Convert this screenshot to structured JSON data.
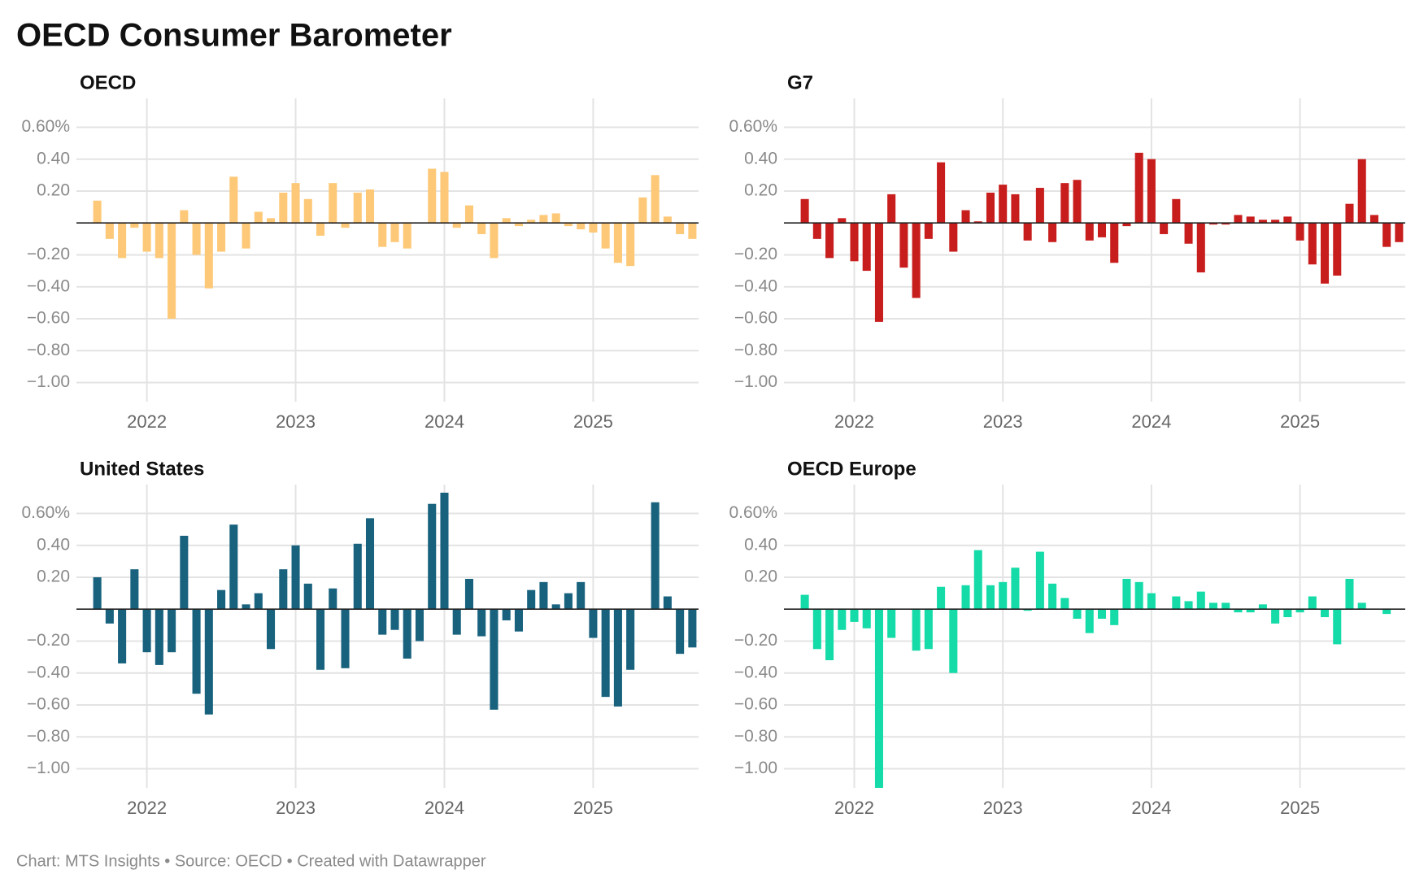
{
  "title": "OECD Consumer Barometer",
  "footer": "Chart: MTS Insights • Source: OECD • Created with Datawrapper",
  "chart_data": [
    {
      "type": "bar",
      "title": "OECD",
      "color": "#fdc978",
      "grid": true,
      "categories": [
        null,
        null,
        null,
        null,
        "2022",
        null,
        null,
        null,
        null,
        null,
        null,
        null,
        null,
        null,
        null,
        null,
        "2023",
        null,
        null,
        null,
        null,
        null,
        null,
        null,
        null,
        null,
        null,
        null,
        "2024",
        null,
        null,
        null,
        null,
        null,
        null,
        null,
        null,
        null,
        null,
        null,
        "2025",
        null,
        null,
        null,
        null,
        null,
        null,
        null,
        null
      ],
      "values": [
        0.14,
        -0.1,
        -0.22,
        -0.03,
        -0.18,
        -0.22,
        -0.6,
        0.08,
        -0.2,
        -0.41,
        -0.18,
        0.29,
        -0.16,
        0.07,
        0.03,
        0.19,
        0.25,
        0.15,
        -0.08,
        0.25,
        -0.03,
        0.19,
        0.21,
        -0.15,
        -0.12,
        -0.16,
        0,
        0.34,
        0.32,
        -0.03,
        0.11,
        -0.07,
        -0.22,
        0.03,
        -0.02,
        0.02,
        0.05,
        0.06,
        -0.02,
        -0.04,
        -0.06,
        -0.16,
        -0.25,
        -0.27,
        0.16,
        0.3,
        0.04,
        -0.07,
        -0.1
      ],
      "ylim": [
        -1.12,
        0.74
      ],
      "yticks": [
        {
          "value": 0.6,
          "label": "0.60%"
        },
        {
          "value": 0.4,
          "label": "0.40"
        },
        {
          "value": 0.2,
          "label": "0.20"
        },
        {
          "value": -0.2,
          "label": "−0.20"
        },
        {
          "value": -0.4,
          "label": "−0.40"
        },
        {
          "value": -0.6,
          "label": "−0.60"
        },
        {
          "value": -0.8,
          "label": "−0.80"
        },
        {
          "value": -1,
          "label": "−1.00"
        }
      ]
    },
    {
      "type": "bar",
      "title": "G7",
      "color": "#c71e1d",
      "grid": true,
      "categories": [
        null,
        null,
        null,
        null,
        "2022",
        null,
        null,
        null,
        null,
        null,
        null,
        null,
        null,
        null,
        null,
        null,
        "2023",
        null,
        null,
        null,
        null,
        null,
        null,
        null,
        null,
        null,
        null,
        null,
        "2024",
        null,
        null,
        null,
        null,
        null,
        null,
        null,
        null,
        null,
        null,
        null,
        "2025",
        null,
        null,
        null,
        null,
        null,
        null,
        null,
        null
      ],
      "values": [
        0.15,
        -0.1,
        -0.22,
        0.03,
        -0.24,
        -0.3,
        -0.62,
        0.18,
        -0.28,
        -0.47,
        -0.1,
        0.38,
        -0.18,
        0.08,
        0.01,
        0.19,
        0.24,
        0.18,
        -0.11,
        0.22,
        -0.12,
        0.25,
        0.27,
        -0.11,
        -0.09,
        -0.25,
        -0.02,
        0.44,
        0.4,
        -0.07,
        0.15,
        -0.13,
        -0.31,
        -0.01,
        -0.01,
        0.05,
        0.04,
        0.02,
        0.02,
        0.04,
        -0.11,
        -0.26,
        -0.38,
        -0.33,
        0.12,
        0.4,
        0.05,
        -0.15,
        -0.12
      ],
      "ylim": [
        -1.12,
        0.74
      ],
      "yticks": [
        {
          "value": 0.6,
          "label": "0.60%"
        },
        {
          "value": 0.4,
          "label": "0.40"
        },
        {
          "value": 0.2,
          "label": "0.20"
        },
        {
          "value": -0.2,
          "label": "−0.20"
        },
        {
          "value": -0.4,
          "label": "−0.40"
        },
        {
          "value": -0.6,
          "label": "−0.60"
        },
        {
          "value": -0.8,
          "label": "−0.80"
        },
        {
          "value": -1,
          "label": "−1.00"
        }
      ]
    },
    {
      "type": "bar",
      "title": "United States",
      "color": "#18627e",
      "grid": true,
      "categories": [
        null,
        null,
        null,
        null,
        "2022",
        null,
        null,
        null,
        null,
        null,
        null,
        null,
        null,
        null,
        null,
        null,
        "2023",
        null,
        null,
        null,
        null,
        null,
        null,
        null,
        null,
        null,
        null,
        null,
        "2024",
        null,
        null,
        null,
        null,
        null,
        null,
        null,
        null,
        null,
        null,
        null,
        "2025",
        null,
        null,
        null,
        null,
        null,
        null,
        null,
        null
      ],
      "values": [
        0.2,
        -0.09,
        -0.34,
        0.25,
        -0.27,
        -0.35,
        -0.27,
        0.46,
        -0.53,
        -0.66,
        0.12,
        0.53,
        0.03,
        0.1,
        -0.25,
        0.25,
        0.4,
        0.16,
        -0.38,
        0.13,
        -0.37,
        0.41,
        0.57,
        -0.16,
        -0.13,
        -0.31,
        -0.2,
        0.66,
        0.73,
        -0.16,
        0.19,
        -0.17,
        -0.63,
        -0.07,
        -0.14,
        0.12,
        0.17,
        0.03,
        0.1,
        0.17,
        -0.18,
        -0.55,
        -0.61,
        -0.38,
        0,
        0.67,
        0.08,
        -0.28,
        -0.24
      ],
      "ylim": [
        -1.12,
        0.74
      ],
      "yticks": [
        {
          "value": 0.6,
          "label": "0.60%"
        },
        {
          "value": 0.4,
          "label": "0.40"
        },
        {
          "value": 0.2,
          "label": "0.20"
        },
        {
          "value": -0.2,
          "label": "−0.20"
        },
        {
          "value": -0.4,
          "label": "−0.40"
        },
        {
          "value": -0.6,
          "label": "−0.60"
        },
        {
          "value": -0.8,
          "label": "−0.80"
        },
        {
          "value": -1,
          "label": "−1.00"
        }
      ]
    },
    {
      "type": "bar",
      "title": "OECD Europe",
      "color": "#15dba8",
      "grid": true,
      "categories": [
        null,
        null,
        null,
        null,
        "2022",
        null,
        null,
        null,
        null,
        null,
        null,
        null,
        null,
        null,
        null,
        null,
        "2023",
        null,
        null,
        null,
        null,
        null,
        null,
        null,
        null,
        null,
        null,
        null,
        "2024",
        null,
        null,
        null,
        null,
        null,
        null,
        null,
        null,
        null,
        null,
        null,
        "2025",
        null,
        null,
        null,
        null,
        null,
        null,
        null,
        null
      ],
      "values": [
        0.09,
        -0.25,
        -0.32,
        -0.13,
        -0.08,
        -0.12,
        -1.12,
        -0.18,
        0,
        -0.26,
        -0.25,
        0.14,
        -0.4,
        0.15,
        0.37,
        0.15,
        0.17,
        0.26,
        -0.01,
        0.36,
        0.16,
        0.07,
        -0.06,
        -0.15,
        -0.06,
        -0.1,
        0.19,
        0.17,
        0.1,
        0,
        0.08,
        0.05,
        0.11,
        0.04,
        0.04,
        -0.02,
        -0.02,
        0.03,
        -0.09,
        -0.05,
        -0.02,
        0.08,
        -0.05,
        -0.22,
        0.19,
        0.04,
        0,
        -0.03,
        null
      ],
      "ylim": [
        -1.12,
        0.74
      ],
      "yticks": [
        {
          "value": 0.6,
          "label": "0.60%"
        },
        {
          "value": 0.4,
          "label": "0.40"
        },
        {
          "value": 0.2,
          "label": "0.20"
        },
        {
          "value": -0.2,
          "label": "−0.20"
        },
        {
          "value": -0.4,
          "label": "−0.40"
        },
        {
          "value": -0.6,
          "label": "−0.60"
        },
        {
          "value": -0.8,
          "label": "−0.80"
        },
        {
          "value": -1,
          "label": "−1.00"
        }
      ]
    }
  ]
}
